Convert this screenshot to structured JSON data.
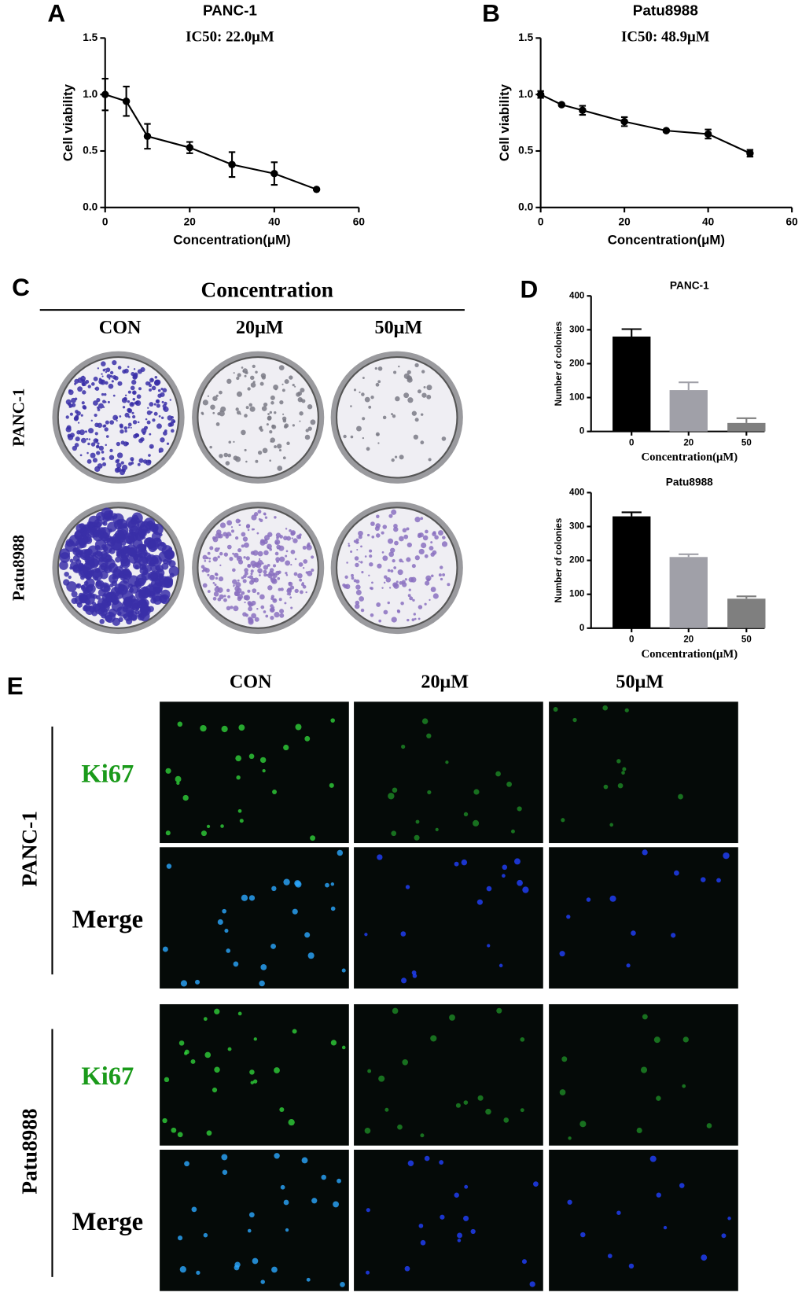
{
  "panel_labels": [
    "A",
    "B",
    "C",
    "D",
    "E"
  ],
  "chart_data": [
    {
      "type": "line",
      "title": "PANC-1",
      "annotation": "IC50: 22.0μM",
      "x_label": "Concentration(μM)",
      "y_label": "Cell viability",
      "x": [
        0,
        5,
        10,
        20,
        30,
        40,
        50
      ],
      "series": [
        {
          "color": "#000000",
          "values": [
            1.0,
            0.94,
            0.63,
            0.53,
            0.38,
            0.3,
            0.16
          ],
          "errors": [
            0.14,
            0.13,
            0.11,
            0.05,
            0.11,
            0.1,
            0
          ]
        }
      ],
      "xlim": [
        0,
        60
      ],
      "xticks": [
        0,
        20,
        40,
        60
      ],
      "ylim": [
        0,
        1.5
      ],
      "yticks": [
        {
          "value": 0,
          "label": "0.0"
        },
        {
          "value": 0.5,
          "label": "0.5"
        },
        {
          "value": 1,
          "label": "1.0"
        },
        {
          "value": 1.5,
          "label": "1.5"
        }
      ]
    },
    {
      "type": "line",
      "title": "Patu8988",
      "annotation": "IC50: 48.9μM",
      "x_label": "Concentration(μM)",
      "y_label": "Cell viability",
      "x": [
        0,
        5,
        10,
        20,
        30,
        40,
        50
      ],
      "series": [
        {
          "color": "#000000",
          "values": [
            1.0,
            0.91,
            0.86,
            0.76,
            0.68,
            0.65,
            0.48
          ],
          "errors": [
            0.03,
            0.01,
            0.04,
            0.04,
            0.01,
            0.04,
            0.03
          ]
        }
      ],
      "xlim": [
        0,
        60
      ],
      "xticks": [
        0,
        20,
        40,
        60
      ],
      "ylim": [
        0,
        1.5
      ],
      "yticks": [
        {
          "value": 0,
          "label": "0.0"
        },
        {
          "value": 0.5,
          "label": "0.5"
        },
        {
          "value": 1,
          "label": "1.0"
        },
        {
          "value": 1.5,
          "label": "1.5"
        }
      ]
    },
    {
      "type": "bar",
      "title": "PANC-1",
      "x_label": "Concentration(μM)",
      "y_label": "Number of colonies",
      "categories": [
        "0",
        "20",
        "50"
      ],
      "values": [
        280,
        122,
        25
      ],
      "errors": [
        22,
        23,
        14
      ],
      "colors": [
        "#000000",
        "#a0a0a8",
        "#7f7f7f"
      ],
      "ylim": [
        0,
        400
      ],
      "yticks": [
        0,
        100,
        200,
        300,
        400
      ]
    },
    {
      "type": "bar",
      "title": "Patu8988",
      "x_label": "Concentration(μM)",
      "y_label": "Number of colonies",
      "categories": [
        "0",
        "20",
        "50"
      ],
      "values": [
        330,
        210,
        87
      ],
      "errors": [
        12,
        8,
        7
      ],
      "colors": [
        "#000000",
        "#a0a0a8",
        "#7f7f7f"
      ],
      "ylim": [
        0,
        400
      ],
      "yticks": [
        0,
        100,
        200,
        300,
        400
      ]
    }
  ],
  "colony": {
    "header": "Concentration",
    "columns": [
      "CON",
      "20μM",
      "50μM"
    ],
    "rows": [
      "PANC-1",
      "Patu8988"
    ]
  },
  "staining": {
    "columns": [
      "CON",
      "20μM",
      "50μM"
    ],
    "groups": [
      "PANC-1",
      "Patu8988"
    ],
    "stains": [
      "Ki67",
      "Merge"
    ]
  }
}
